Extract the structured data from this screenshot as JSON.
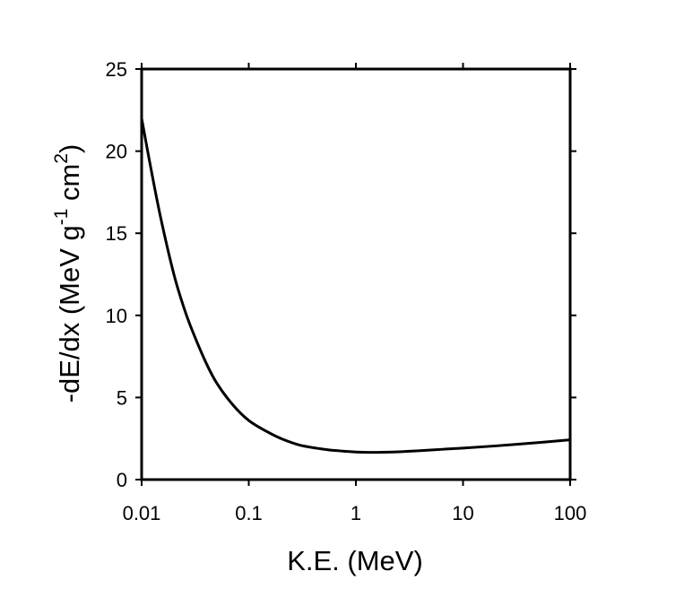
{
  "chart_data": {
    "type": "line",
    "title": "",
    "xlabel": "K.E. (MeV)",
    "ylabel": {
      "main": "-dE/dx (MeV g",
      "sup1": "-1",
      "mid": " cm",
      "sup2": "2",
      "end": ")"
    },
    "x_scale": "log",
    "xlim": [
      0.01,
      100
    ],
    "ylim": [
      0,
      25
    ],
    "x_ticks": [
      {
        "value": 0.01,
        "label": "0.01"
      },
      {
        "value": 0.1,
        "label": "0.1"
      },
      {
        "value": 1,
        "label": "1"
      },
      {
        "value": 10,
        "label": "10"
      },
      {
        "value": 100,
        "label": "100"
      }
    ],
    "y_ticks": [
      {
        "value": 0,
        "label": "0"
      },
      {
        "value": 5,
        "label": "5"
      },
      {
        "value": 10,
        "label": "10"
      },
      {
        "value": 15,
        "label": "15"
      },
      {
        "value": 20,
        "label": "20"
      },
      {
        "value": 25,
        "label": "25"
      }
    ],
    "grid": false,
    "legend": "none",
    "line_color": "#000000",
    "series": [
      {
        "x": [
          0.01,
          0.012,
          0.015,
          0.02,
          0.025,
          0.03,
          0.04,
          0.05,
          0.07,
          0.1,
          0.15,
          0.2,
          0.3,
          0.5,
          0.7,
          1,
          1.5,
          2,
          3,
          5,
          7,
          10,
          20,
          50,
          100
        ],
        "values": [
          22.0,
          19.2,
          16.0,
          12.5,
          10.4,
          9.0,
          7.1,
          5.9,
          4.6,
          3.6,
          2.9,
          2.5,
          2.1,
          1.85,
          1.75,
          1.68,
          1.66,
          1.67,
          1.72,
          1.8,
          1.86,
          1.92,
          2.05,
          2.25,
          2.42
        ]
      }
    ]
  }
}
